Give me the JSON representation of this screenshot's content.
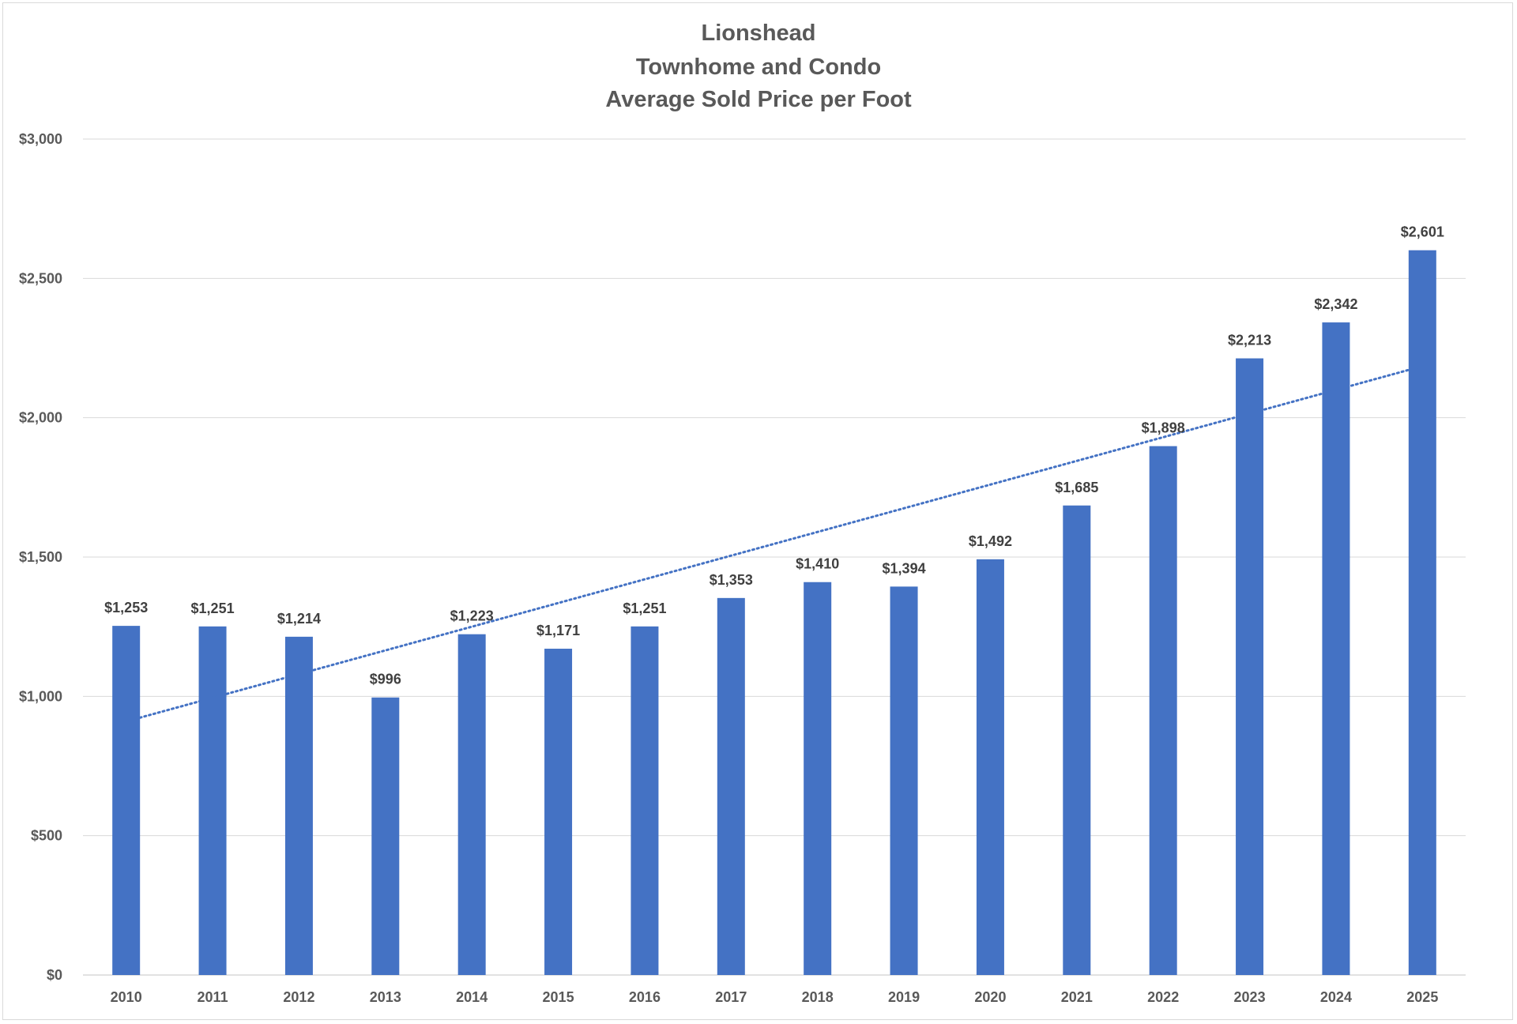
{
  "chart_data": {
    "type": "bar",
    "title_lines": [
      "Lionshead",
      "Townhome and Condo",
      "Average Sold Price per Foot"
    ],
    "categories": [
      "2010",
      "2011",
      "2012",
      "2013",
      "2014",
      "2015",
      "2016",
      "2017",
      "2018",
      "2019",
      "2020",
      "2021",
      "2022",
      "2023",
      "2024",
      "2025"
    ],
    "values": [
      1253,
      1251,
      1214,
      996,
      1223,
      1171,
      1251,
      1353,
      1410,
      1394,
      1492,
      1685,
      1898,
      2213,
      2342,
      2601
    ],
    "value_labels": [
      "$1,253",
      "$1,251",
      "$1,214",
      "$996",
      "$1,223",
      "$1,171",
      "$1,251",
      "$1,353",
      "$1,410",
      "$1,394",
      "$1,492",
      "$1,685",
      "$1,898",
      "$2,213",
      "$2,342",
      "$2,601"
    ],
    "ylim": [
      0,
      3000
    ],
    "yticks": [
      0,
      500,
      1000,
      1500,
      2000,
      2500,
      3000
    ],
    "ytick_labels": [
      "$0",
      "$500",
      "$1,000",
      "$1,500",
      "$2,000",
      "$2,500",
      "$3,000"
    ],
    "xlabel": "",
    "ylabel": "",
    "grid": true,
    "legend": false,
    "trendline": {
      "type": "linear",
      "style": "dotted",
      "start_value": 910,
      "end_value": 2185
    },
    "colors": {
      "bar": "#4472C4",
      "trendline": "#4472C4",
      "grid": "#d9d9d9",
      "text": "#595959",
      "data_label": "#404040"
    }
  }
}
